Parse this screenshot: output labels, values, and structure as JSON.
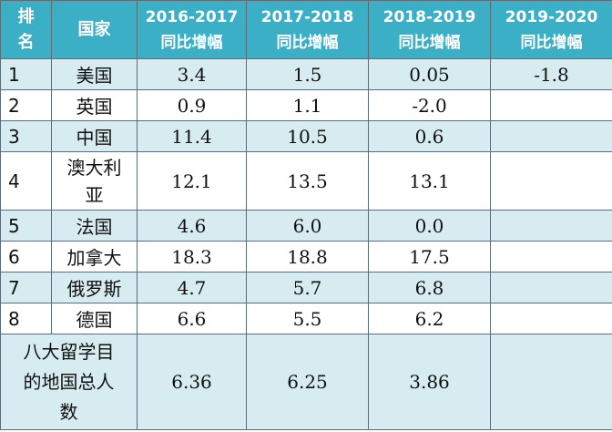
{
  "header": {
    "rank_lines": [
      "排",
      "名"
    ],
    "country": "国家",
    "columns": [
      {
        "period": "2016-2017",
        "metric": "同比增幅"
      },
      {
        "period": "2017-2018",
        "metric": "同比增幅"
      },
      {
        "period": "2018-2019",
        "metric": "同比增幅"
      },
      {
        "period": "2019-2020",
        "metric": "同比增幅"
      }
    ]
  },
  "rows": [
    {
      "rank": "1",
      "country": "美国",
      "v1": "3.4",
      "v2": "1.5",
      "v3": "0.05",
      "v4": "-1.8"
    },
    {
      "rank": "2",
      "country": "英国",
      "v1": "0.9",
      "v2": "1.1",
      "v3": "-2.0",
      "v4": ""
    },
    {
      "rank": "3",
      "country": "中国",
      "v1": "11.4",
      "v2": "10.5",
      "v3": "0.6",
      "v4": ""
    },
    {
      "rank": "4",
      "country_lines": [
        "澳大利",
        "亚"
      ],
      "v1": "12.1",
      "v2": "13.5",
      "v3": "13.1",
      "v4": ""
    },
    {
      "rank": "5",
      "country": "法国",
      "v1": "4.6",
      "v2": "6.0",
      "v3": "0.0",
      "v4": ""
    },
    {
      "rank": "6",
      "country": "加拿大",
      "v1": "18.3",
      "v2": "18.8",
      "v3": "17.5",
      "v4": ""
    },
    {
      "rank": "7",
      "country": "俄罗斯",
      "v1": "4.7",
      "v2": "5.7",
      "v3": "6.8",
      "v4": ""
    },
    {
      "rank": "8",
      "country": "德国",
      "v1": "6.6",
      "v2": "5.5",
      "v3": "6.2",
      "v4": ""
    }
  ],
  "total": {
    "label_lines": [
      "八大留学目",
      "的地国总人",
      "数"
    ],
    "v1": "6.36",
    "v2": "6.25",
    "v3": "3.86",
    "v4": ""
  },
  "colors": {
    "header_bg": "#3aafc6",
    "row_shade": "#d7ecf1",
    "row_plain": "#ffffff",
    "grid": "#5a6d78"
  }
}
